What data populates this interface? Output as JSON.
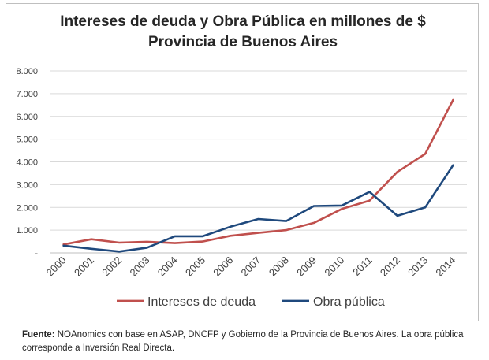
{
  "chart_data": {
    "type": "line",
    "title": [
      "Intereses de deuda y Obra Pública en millones de $",
      "Provincia de Buenos Aires"
    ],
    "xlabel": "",
    "ylabel": "",
    "categories": [
      "2000",
      "2001",
      "2002",
      "2003",
      "2004",
      "2005",
      "2006",
      "2007",
      "2008",
      "2009",
      "2010",
      "2011",
      "2012",
      "2013",
      "2014"
    ],
    "y_ticks": [
      "-",
      "1.000",
      "2.000",
      "3.000",
      "4.000",
      "5.000",
      "6.000",
      "7.000",
      "8.000"
    ],
    "y_tick_values": [
      0,
      1000,
      2000,
      3000,
      4000,
      5000,
      6000,
      7000,
      8000
    ],
    "ylim": [
      0,
      8000
    ],
    "grid": true,
    "legend_position": "bottom",
    "series": [
      {
        "name": "Intereses de deuda",
        "color": "#c0504d",
        "values": [
          370,
          600,
          450,
          490,
          430,
          500,
          750,
          880,
          1000,
          1320,
          1930,
          2300,
          3560,
          4350,
          6720
        ]
      },
      {
        "name": "Obra pública",
        "color": "#1f497d",
        "values": [
          320,
          180,
          60,
          230,
          730,
          730,
          1150,
          1490,
          1400,
          2060,
          2080,
          2680,
          1630,
          2000,
          3850
        ]
      }
    ]
  },
  "source": {
    "label": "Fuente:",
    "text": " NOAnomics con base en ASAP, DNCFP y Gobierno de la Provincia de Buenos Aires. La obra pública corresponde a Inversión Real Directa."
  }
}
